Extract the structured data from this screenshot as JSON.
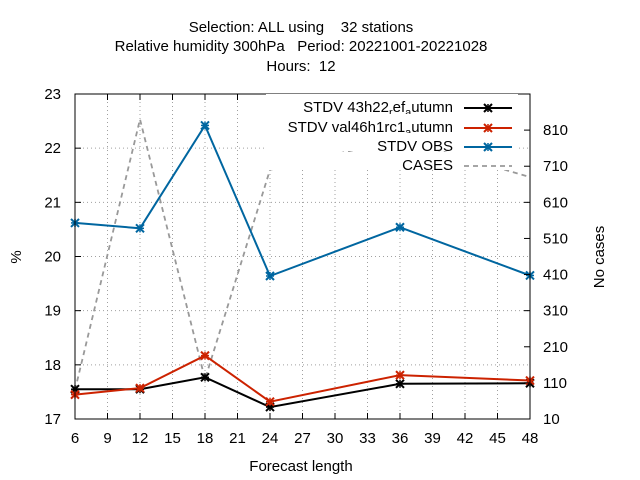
{
  "chart_data": {
    "type": "line",
    "title_lines": [
      "Selection: ALL using    32 stations",
      "Relative humidity 300hPa   Period: 20221001-20221028",
      "Hours:  12"
    ],
    "xlabel": "Forecast length",
    "ylabel": "%",
    "y2label": "No cases",
    "xlim": [
      6,
      48
    ],
    "ylim": [
      17,
      23
    ],
    "y2lim": [
      10,
      910
    ],
    "xticks": [
      6,
      9,
      12,
      15,
      18,
      21,
      24,
      27,
      30,
      33,
      36,
      39,
      42,
      45,
      48
    ],
    "yticks": [
      17,
      18,
      19,
      20,
      21,
      22,
      23
    ],
    "y2ticks": [
      10,
      110,
      210,
      310,
      410,
      510,
      610,
      710,
      810
    ],
    "grid": true,
    "legend_position": "top-right",
    "series": [
      {
        "name": "STDV 43h22_ref_autumn",
        "legend_label": {
          "base": "STDV 43h22",
          "sub1": "r",
          "mid": "ef",
          "sub2": "a",
          "end": "utumn"
        },
        "color": "#000000",
        "dash": "",
        "axis": "y",
        "marker": "x-star",
        "x": [
          6,
          12,
          18,
          24,
          36,
          48
        ],
        "values": [
          17.55,
          17.55,
          17.77,
          17.22,
          17.65,
          17.66
        ]
      },
      {
        "name": "STDV val46h1rc1_autumn",
        "legend_label": {
          "base": "STDV val46h1rc1",
          "sub1": "",
          "mid": "",
          "sub2": "a",
          "end": "utumn"
        },
        "color": "#cc2200",
        "dash": "",
        "axis": "y",
        "marker": "x-star",
        "x": [
          6,
          12,
          18,
          24,
          36,
          48
        ],
        "values": [
          17.45,
          17.57,
          18.17,
          17.32,
          17.81,
          17.71
        ]
      },
      {
        "name": "STDV OBS",
        "legend_label": {
          "base": "STDV OBS",
          "sub1": "",
          "mid": "",
          "sub2": "",
          "end": ""
        },
        "color": "#0066a0",
        "dash": "",
        "axis": "y",
        "marker": "x-star",
        "x": [
          6,
          12,
          18,
          24,
          36,
          48
        ],
        "values": [
          20.62,
          20.52,
          22.42,
          19.64,
          20.54,
          19.65
        ]
      },
      {
        "name": "CASES",
        "legend_label": {
          "base": "CASES",
          "sub1": "",
          "mid": "",
          "sub2": "",
          "end": ""
        },
        "color": "#999999",
        "dash": "5,4",
        "axis": "y2",
        "marker": "",
        "x": [
          6,
          12,
          18,
          24,
          36,
          48
        ],
        "values": [
          90,
          840,
          120,
          700,
          785,
          680
        ]
      }
    ]
  }
}
